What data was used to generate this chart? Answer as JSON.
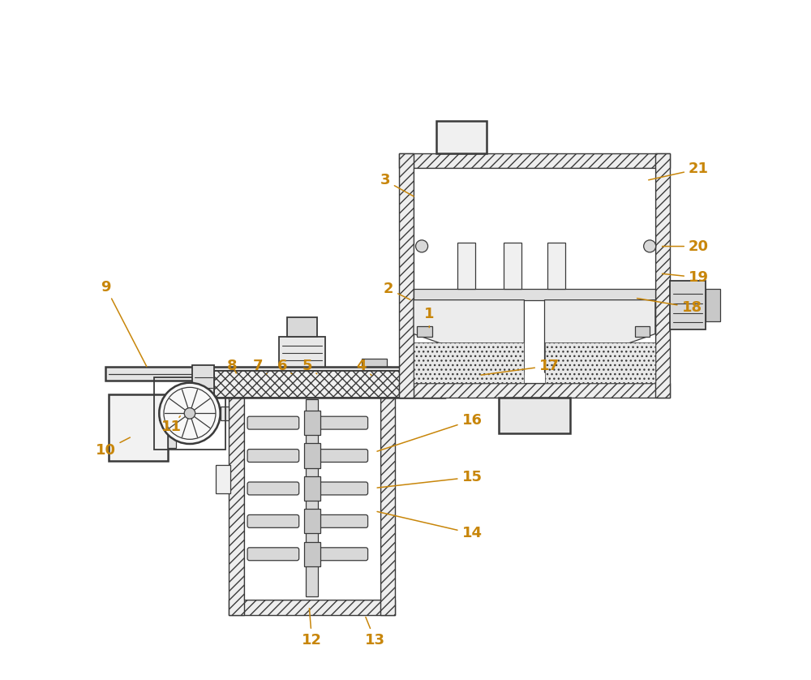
{
  "bg_color": "#ffffff",
  "line_color": "#3a3a3a",
  "label_color": "#c8860a",
  "figsize": [
    10.0,
    8.38
  ],
  "dpi": 100,
  "annotations": [
    [
      "1",
      [
        0.535,
        0.538
      ],
      [
        0.535,
        0.515
      ]
    ],
    [
      "2",
      [
        0.475,
        0.575
      ],
      [
        0.51,
        0.558
      ]
    ],
    [
      "3",
      [
        0.47,
        0.735
      ],
      [
        0.515,
        0.71
      ]
    ],
    [
      "4",
      [
        0.435,
        0.462
      ],
      [
        0.45,
        0.448
      ]
    ],
    [
      "5",
      [
        0.355,
        0.462
      ],
      [
        0.372,
        0.448
      ]
    ],
    [
      "6",
      [
        0.318,
        0.462
      ],
      [
        0.335,
        0.448
      ]
    ],
    [
      "7",
      [
        0.282,
        0.462
      ],
      [
        0.298,
        0.448
      ]
    ],
    [
      "8",
      [
        0.245,
        0.462
      ],
      [
        0.252,
        0.448
      ]
    ],
    [
      "9",
      [
        0.058,
        0.578
      ],
      [
        0.12,
        0.458
      ]
    ],
    [
      "10",
      [
        0.058,
        0.338
      ],
      [
        0.097,
        0.358
      ]
    ],
    [
      "11",
      [
        0.155,
        0.372
      ],
      [
        0.168,
        0.388
      ]
    ],
    [
      "12",
      [
        0.362,
        0.058
      ],
      [
        0.358,
        0.108
      ]
    ],
    [
      "13",
      [
        0.455,
        0.058
      ],
      [
        0.44,
        0.095
      ]
    ],
    [
      "14",
      [
        0.598,
        0.215
      ],
      [
        0.455,
        0.248
      ]
    ],
    [
      "15",
      [
        0.598,
        0.298
      ],
      [
        0.455,
        0.282
      ]
    ],
    [
      "16",
      [
        0.598,
        0.382
      ],
      [
        0.455,
        0.335
      ]
    ],
    [
      "17",
      [
        0.712,
        0.462
      ],
      [
        0.608,
        0.448
      ]
    ],
    [
      "18",
      [
        0.922,
        0.548
      ],
      [
        0.838,
        0.562
      ]
    ],
    [
      "19",
      [
        0.932,
        0.592
      ],
      [
        0.875,
        0.598
      ]
    ],
    [
      "20",
      [
        0.932,
        0.638
      ],
      [
        0.875,
        0.638
      ]
    ],
    [
      "21",
      [
        0.932,
        0.752
      ],
      [
        0.855,
        0.735
      ]
    ]
  ]
}
